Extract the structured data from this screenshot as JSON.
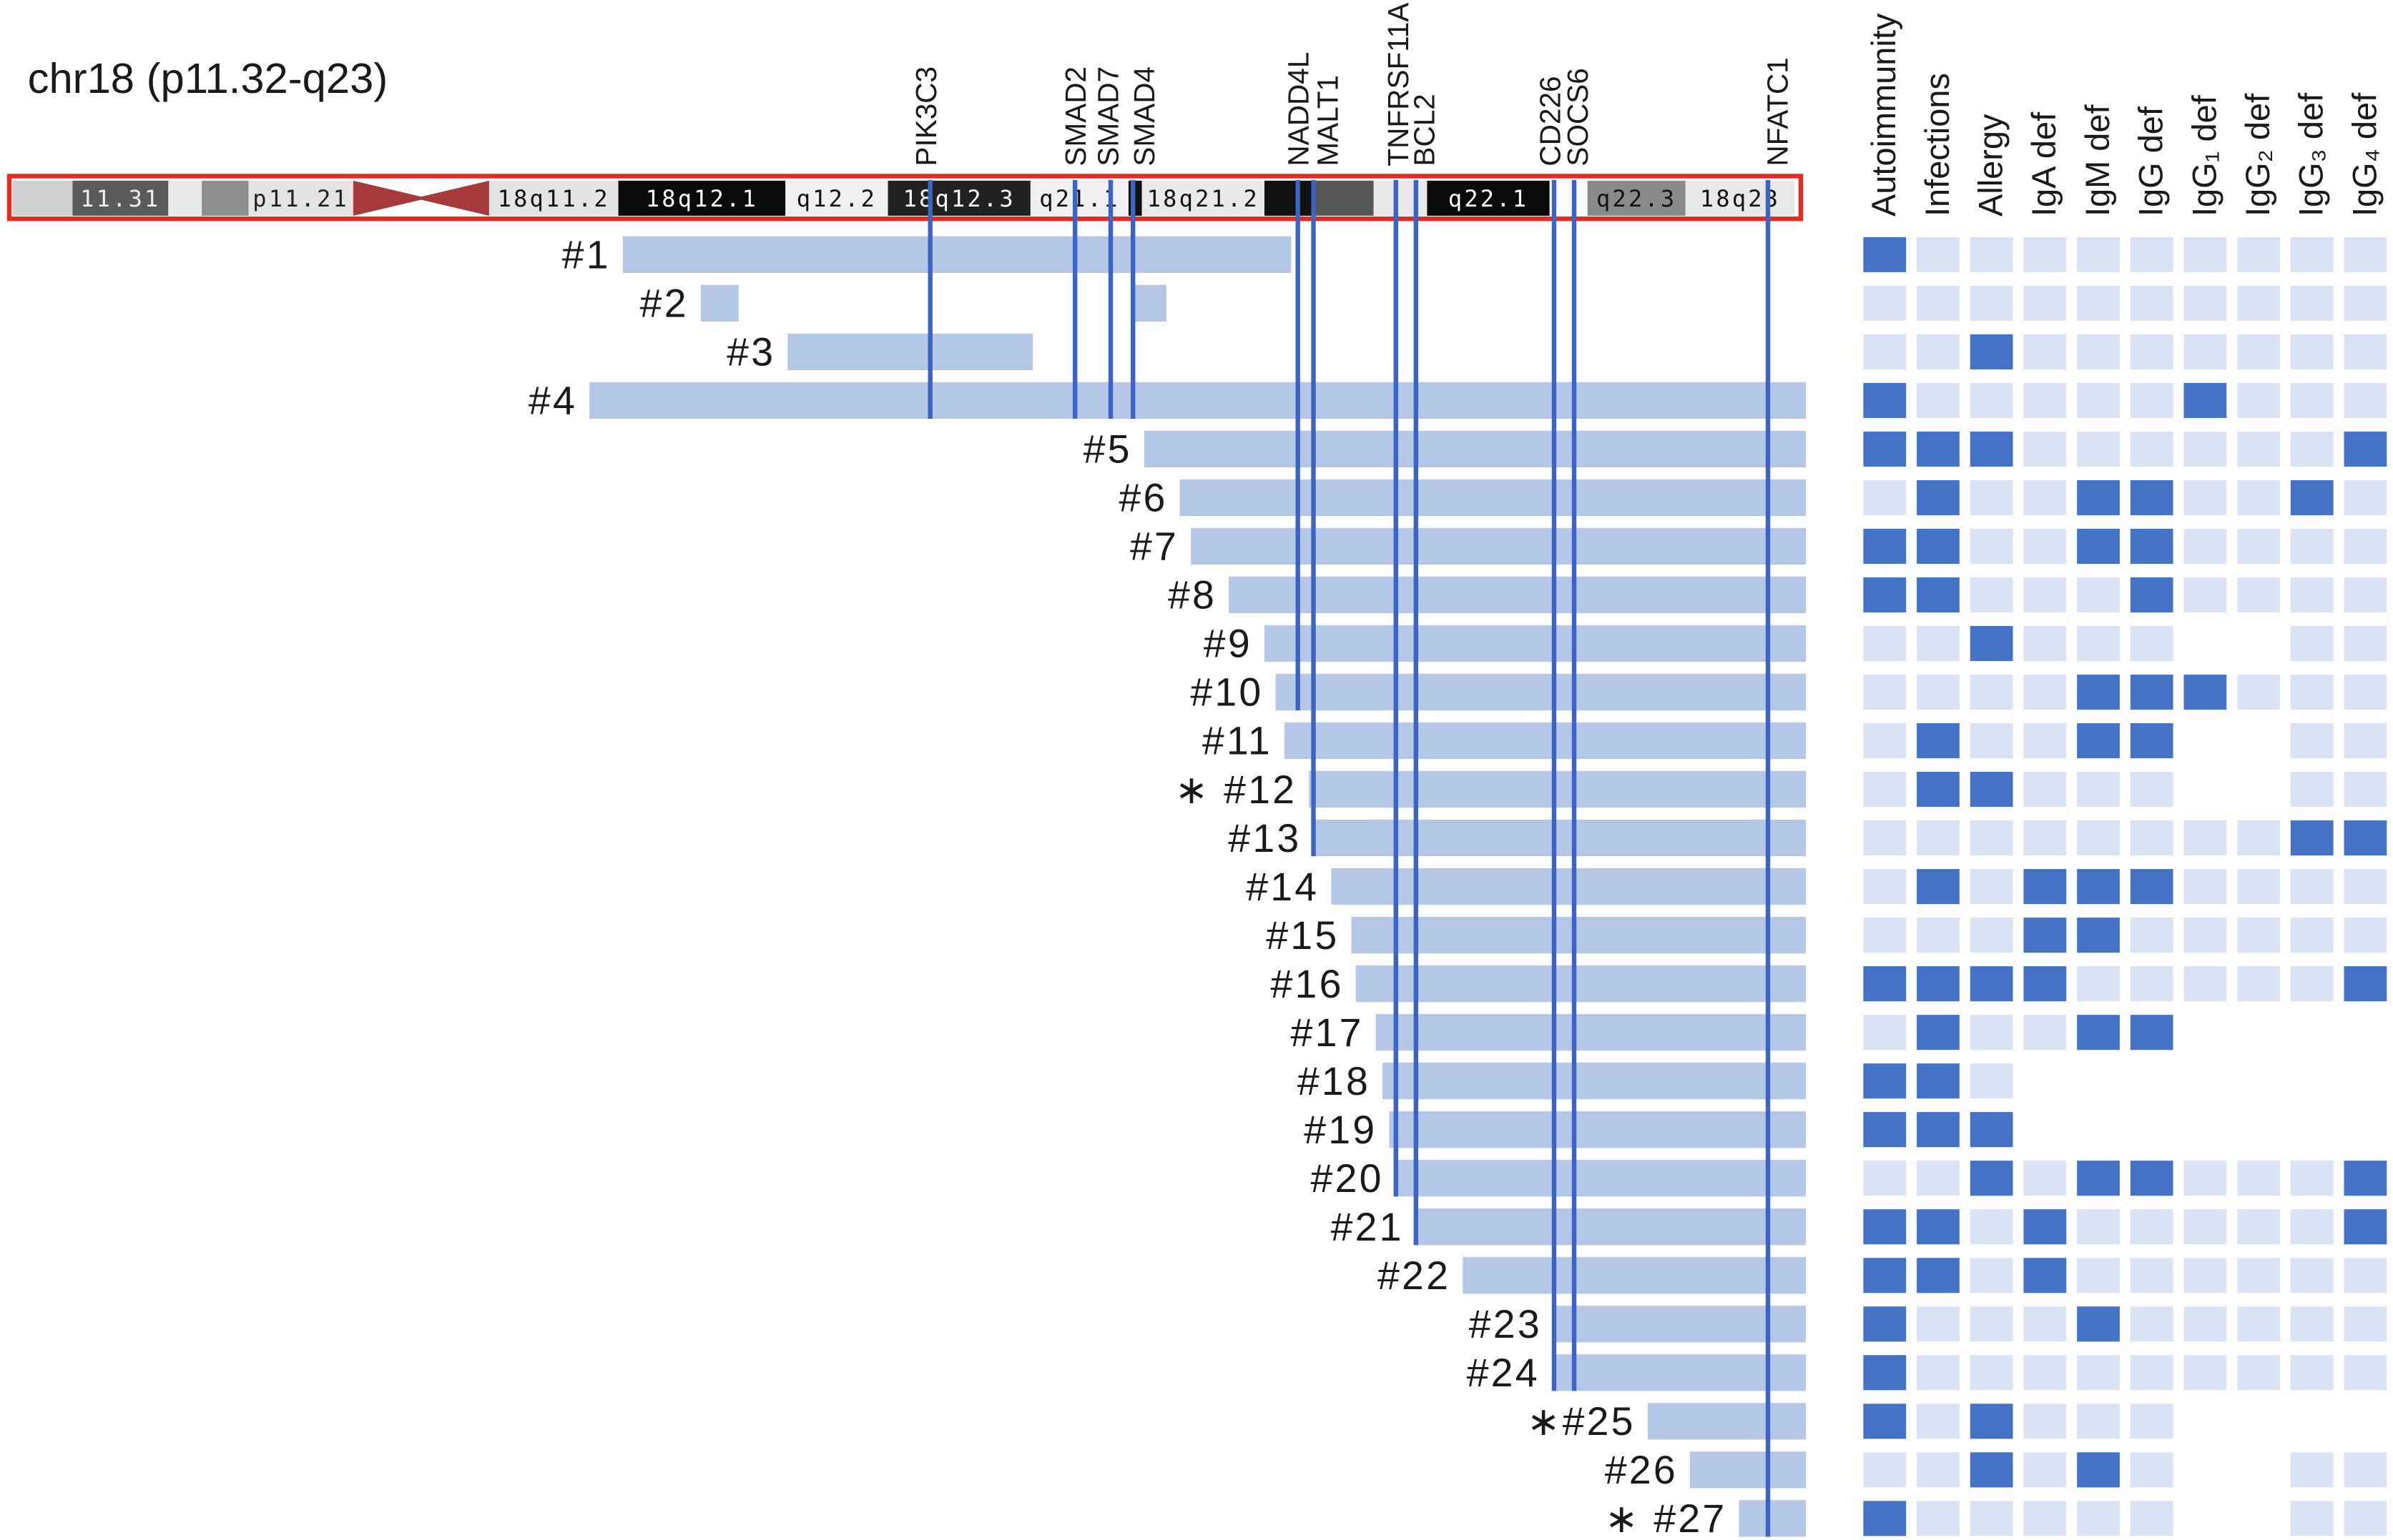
{
  "colors": {
    "bar": "#b4c7e7",
    "gene_line": "#3b64c4",
    "present": "#4472c4",
    "absent": "#dae3f3",
    "outline": "#e32b24",
    "centromere": "#a63a3a"
  },
  "chart_data": [
    {
      "type": "bar",
      "title": "chr18 (p11.32-q23)",
      "xlim": [
        0,
        80.5
      ],
      "ideogram": {
        "centromere": [
          15.3,
          21.4
        ],
        "bands": [
          {
            "start": 0.0,
            "end": 2.7,
            "fill": "#d0d0d0"
          },
          {
            "start": 2.7,
            "end": 7.0,
            "fill": "#5a5a5a",
            "label": "11.31",
            "label_color": "#eeeeee"
          },
          {
            "start": 7.0,
            "end": 8.5,
            "fill": "#e8e8e8"
          },
          {
            "start": 8.5,
            "end": 10.6,
            "fill": "#8e8e8e"
          },
          {
            "start": 10.6,
            "end": 15.3,
            "fill": "#e4e4e4",
            "label": "p11.21",
            "label_color": "#222222"
          },
          {
            "start": 21.4,
            "end": 27.2,
            "fill": "#e4e4e4",
            "label": "18q11.2",
            "label_color": "#111111"
          },
          {
            "start": 27.2,
            "end": 34.7,
            "fill": "#0a0a0a",
            "label": "18q12.1",
            "label_color": "#ffffff"
          },
          {
            "start": 34.7,
            "end": 39.3,
            "fill": "#f0f0f0",
            "label": "q12.2",
            "label_color": "#111111"
          },
          {
            "start": 39.3,
            "end": 45.7,
            "fill": "#222222",
            "label": "18q12.3",
            "label_color": "#ffffff"
          },
          {
            "start": 45.7,
            "end": 50.1,
            "fill": "#f0f0f0",
            "label": "q21.1",
            "label_color": "#111111"
          },
          {
            "start": 50.1,
            "end": 50.7,
            "fill": "#111111"
          },
          {
            "start": 50.7,
            "end": 56.2,
            "fill": "#eaeaea",
            "label": "18q21.2",
            "label_color": "#111111"
          },
          {
            "start": 56.2,
            "end": 58.4,
            "fill": "#111111"
          },
          {
            "start": 58.4,
            "end": 61.1,
            "fill": "#555555"
          },
          {
            "start": 61.1,
            "end": 63.5,
            "fill": "#e8e8e8"
          },
          {
            "start": 63.5,
            "end": 69.0,
            "fill": "#0a0a0a",
            "label": "q22.1",
            "label_color": "#ffffff"
          },
          {
            "start": 69.0,
            "end": 70.7,
            "fill": "#fafafa"
          },
          {
            "start": 70.7,
            "end": 75.1,
            "fill": "#8a8a8a",
            "label": "q22.3",
            "label_color": "#111111"
          },
          {
            "start": 75.1,
            "end": 80.0,
            "fill": "#e8e8e8",
            "label": "18q23",
            "label_color": "#111111"
          }
        ]
      },
      "genes": [
        {
          "name": "PIK3C3",
          "pos": 41.2,
          "to_case": 4
        },
        {
          "name": "SMAD2",
          "pos": 47.7,
          "to_case": 4
        },
        {
          "name": "SMAD7",
          "pos": 49.3,
          "to_case": 4
        },
        {
          "name": "SMAD4",
          "pos": 50.3,
          "to_case": 4
        },
        {
          "name": "NADD4L",
          "pos": 57.7,
          "to_case": 10
        },
        {
          "name": "MALT1",
          "pos": 58.4,
          "to_case": 13
        },
        {
          "name": "TNFRSF11A",
          "pos": 62.1,
          "to_case": 20
        },
        {
          "name": "BCL2",
          "pos": 63.0,
          "to_case": 21
        },
        {
          "name": "CD226",
          "pos": 69.2,
          "to_case": 24
        },
        {
          "name": "SOCS6",
          "pos": 70.1,
          "to_case": 24
        },
        {
          "name": "NFATC1",
          "pos": 78.8,
          "to_case": 27
        }
      ],
      "cases": [
        {
          "label": "#1",
          "segments": [
            [
              27.4,
              57.4
            ]
          ]
        },
        {
          "label": "#2",
          "segments": [
            [
              30.9,
              32.6
            ],
            [
              50.3,
              51.8
            ]
          ]
        },
        {
          "label": "#3",
          "segments": [
            [
              34.8,
              45.8
            ]
          ]
        },
        {
          "label": "#4",
          "segments": [
            [
              25.9,
              80.5
            ]
          ]
        },
        {
          "label": "#5",
          "segments": [
            [
              50.8,
              80.5
            ]
          ]
        },
        {
          "label": "#6",
          "segments": [
            [
              52.4,
              80.5
            ]
          ]
        },
        {
          "label": "#7",
          "segments": [
            [
              52.9,
              80.5
            ]
          ]
        },
        {
          "label": "#8",
          "segments": [
            [
              54.6,
              80.5
            ]
          ]
        },
        {
          "label": "#9",
          "segments": [
            [
              56.2,
              80.5
            ]
          ]
        },
        {
          "label": "#10",
          "segments": [
            [
              56.7,
              80.5
            ]
          ]
        },
        {
          "label": "#11",
          "segments": [
            [
              57.1,
              80.5
            ]
          ]
        },
        {
          "label": "∗ #12",
          "segments": [
            [
              58.2,
              80.5
            ]
          ]
        },
        {
          "label": "#13",
          "segments": [
            [
              58.4,
              80.5
            ]
          ]
        },
        {
          "label": "#14",
          "segments": [
            [
              59.2,
              80.5
            ]
          ]
        },
        {
          "label": "#15",
          "segments": [
            [
              60.1,
              80.5
            ]
          ]
        },
        {
          "label": "#16",
          "segments": [
            [
              60.3,
              80.5
            ]
          ]
        },
        {
          "label": "#17",
          "segments": [
            [
              61.2,
              80.5
            ]
          ]
        },
        {
          "label": "#18",
          "segments": [
            [
              61.5,
              80.5
            ]
          ]
        },
        {
          "label": "#19",
          "segments": [
            [
              61.8,
              80.5
            ]
          ]
        },
        {
          "label": "#20",
          "segments": [
            [
              62.1,
              80.5
            ]
          ]
        },
        {
          "label": "#21",
          "segments": [
            [
              63.0,
              80.5
            ]
          ]
        },
        {
          "label": "#22",
          "segments": [
            [
              65.1,
              80.5
            ]
          ]
        },
        {
          "label": "#23",
          "segments": [
            [
              69.2,
              80.5
            ]
          ]
        },
        {
          "label": "#24",
          "segments": [
            [
              69.1,
              80.5
            ]
          ]
        },
        {
          "label": "∗#25",
          "segments": [
            [
              73.4,
              80.5
            ]
          ]
        },
        {
          "label": "#26",
          "segments": [
            [
              75.3,
              80.5
            ]
          ]
        },
        {
          "label": "∗ #27",
          "segments": [
            [
              77.5,
              80.5
            ]
          ]
        }
      ]
    },
    {
      "type": "heatmap",
      "columns": [
        "Autoimmunity",
        "Infections",
        "Allergy",
        "IgA def",
        "IgM def",
        "IgG  def",
        "IgG₁ def",
        "IgG₂ def",
        "IgG₃ def",
        "IgG₄ def"
      ],
      "values": [
        [
          1,
          0,
          0,
          0,
          0,
          0,
          0,
          0,
          0,
          0
        ],
        [
          0,
          0,
          0,
          0,
          0,
          0,
          0,
          0,
          0,
          0
        ],
        [
          0,
          0,
          1,
          0,
          0,
          0,
          0,
          0,
          0,
          0
        ],
        [
          1,
          0,
          0,
          0,
          0,
          0,
          1,
          0,
          0,
          0
        ],
        [
          1,
          1,
          1,
          0,
          0,
          0,
          0,
          0,
          0,
          1
        ],
        [
          0,
          1,
          0,
          0,
          1,
          1,
          0,
          0,
          1,
          0
        ],
        [
          1,
          1,
          0,
          0,
          1,
          1,
          0,
          0,
          0,
          0
        ],
        [
          1,
          1,
          0,
          0,
          0,
          1,
          0,
          0,
          0,
          0
        ],
        [
          0,
          0,
          1,
          0,
          0,
          0,
          null,
          null,
          0,
          0
        ],
        [
          0,
          0,
          0,
          0,
          1,
          1,
          1,
          0,
          0,
          0
        ],
        [
          0,
          1,
          0,
          0,
          1,
          1,
          null,
          null,
          0,
          0
        ],
        [
          0,
          1,
          1,
          0,
          0,
          0,
          null,
          null,
          0,
          0
        ],
        [
          0,
          0,
          0,
          0,
          0,
          0,
          0,
          0,
          1,
          1
        ],
        [
          0,
          1,
          0,
          1,
          1,
          1,
          0,
          0,
          0,
          0
        ],
        [
          0,
          0,
          0,
          1,
          1,
          0,
          0,
          0,
          0,
          0
        ],
        [
          1,
          1,
          1,
          1,
          0,
          0,
          0,
          0,
          0,
          1
        ],
        [
          0,
          1,
          0,
          0,
          1,
          1,
          null,
          null,
          null,
          null
        ],
        [
          1,
          1,
          0,
          null,
          null,
          null,
          null,
          null,
          null,
          null
        ],
        [
          1,
          1,
          1,
          null,
          null,
          null,
          null,
          null,
          null,
          null
        ],
        [
          0,
          0,
          1,
          0,
          1,
          1,
          0,
          0,
          0,
          1
        ],
        [
          1,
          1,
          0,
          1,
          0,
          0,
          0,
          0,
          0,
          1
        ],
        [
          1,
          1,
          0,
          1,
          0,
          0,
          0,
          0,
          0,
          0
        ],
        [
          1,
          0,
          0,
          0,
          1,
          0,
          0,
          0,
          0,
          0
        ],
        [
          1,
          0,
          0,
          0,
          0,
          0,
          0,
          0,
          0,
          0
        ],
        [
          1,
          0,
          1,
          0,
          0,
          0,
          null,
          null,
          null,
          null
        ],
        [
          0,
          0,
          1,
          0,
          1,
          0,
          null,
          null,
          0,
          0
        ],
        [
          1,
          0,
          0,
          0,
          0,
          0,
          null,
          null,
          0,
          0
        ]
      ]
    }
  ]
}
